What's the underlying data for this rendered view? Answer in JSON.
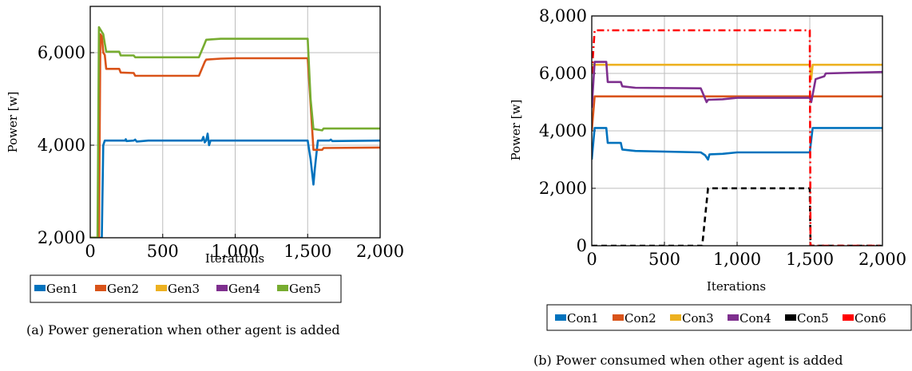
{
  "chart_data": [
    {
      "type": "line",
      "caption": "(a) Power generation when other agent is added",
      "xlabel": "Iterations",
      "ylabel": "Power [w]",
      "xlim": [
        0,
        2000
      ],
      "ylim": [
        2000,
        7000
      ],
      "xticks": [
        0,
        500,
        1000,
        1500,
        2000
      ],
      "xtick_labels": [
        "0",
        "500",
        "1,000",
        "1,500",
        "2,000"
      ],
      "yticks": [
        2000,
        4000,
        6000
      ],
      "ytick_labels": [
        "2,000",
        "4,000",
        "6,000"
      ],
      "grid": true,
      "legend_position": "bottom",
      "series": [
        {
          "name": "Gen1",
          "color": "#0072BD",
          "style": "solid",
          "points": [
            [
              0,
              2000
            ],
            [
              80,
              2000
            ],
            [
              90,
              4000
            ],
            [
              100,
              4100
            ],
            [
              240,
              4100
            ],
            [
              245,
              4130
            ],
            [
              250,
              4090
            ],
            [
              300,
              4100
            ],
            [
              310,
              4120
            ],
            [
              320,
              4080
            ],
            [
              400,
              4100
            ],
            [
              770,
              4100
            ],
            [
              780,
              4180
            ],
            [
              790,
              4060
            ],
            [
              800,
              4100
            ],
            [
              810,
              4250
            ],
            [
              820,
              4000
            ],
            [
              830,
              4100
            ],
            [
              1500,
              4100
            ],
            [
              1520,
              3700
            ],
            [
              1540,
              3150
            ],
            [
              1550,
              3500
            ],
            [
              1570,
              4100
            ],
            [
              1650,
              4100
            ],
            [
              1660,
              4120
            ],
            [
              1670,
              4090
            ],
            [
              2000,
              4100
            ]
          ]
        },
        {
          "name": "Gen2",
          "color": "#D95319",
          "style": "solid",
          "points": [
            [
              0,
              2000
            ],
            [
              60,
              2000
            ],
            [
              70,
              6400
            ],
            [
              80,
              6350
            ],
            [
              90,
              6000
            ],
            [
              100,
              5950
            ],
            [
              110,
              5650
            ],
            [
              200,
              5650
            ],
            [
              210,
              5570
            ],
            [
              300,
              5560
            ],
            [
              310,
              5500
            ],
            [
              750,
              5500
            ],
            [
              790,
              5800
            ],
            [
              800,
              5850
            ],
            [
              900,
              5870
            ],
            [
              1000,
              5880
            ],
            [
              1500,
              5880
            ],
            [
              1520,
              4900
            ],
            [
              1540,
              3900
            ],
            [
              1600,
              3900
            ],
            [
              1610,
              3940
            ],
            [
              2000,
              3950
            ]
          ]
        },
        {
          "name": "Gen3",
          "color": "#EDB120",
          "style": "solid",
          "points": []
        },
        {
          "name": "Gen4",
          "color": "#7E2F8E",
          "style": "solid",
          "points": []
        },
        {
          "name": "Gen5",
          "color": "#77AC30",
          "style": "solid",
          "points": [
            [
              0,
              2000
            ],
            [
              50,
              2000
            ],
            [
              60,
              6550
            ],
            [
              70,
              6500
            ],
            [
              80,
              6450
            ],
            [
              90,
              6400
            ],
            [
              100,
              6200
            ],
            [
              110,
              6020
            ],
            [
              200,
              6020
            ],
            [
              210,
              5940
            ],
            [
              300,
              5940
            ],
            [
              310,
              5900
            ],
            [
              750,
              5900
            ],
            [
              790,
              6200
            ],
            [
              800,
              6280
            ],
            [
              900,
              6300
            ],
            [
              1500,
              6300
            ],
            [
              1520,
              5000
            ],
            [
              1540,
              4350
            ],
            [
              1600,
              4320
            ],
            [
              1610,
              4360
            ],
            [
              2000,
              4360
            ]
          ]
        }
      ]
    },
    {
      "type": "line",
      "caption": "(b) Power consumed when other agent is added",
      "xlabel": "Iterations",
      "ylabel": "Power [w]",
      "xlim": [
        0,
        2000
      ],
      "ylim": [
        0,
        8000
      ],
      "xticks": [
        0,
        500,
        1000,
        1500,
        2000
      ],
      "xtick_labels": [
        "0",
        "500",
        "1,000",
        "1,500",
        "2,000"
      ],
      "yticks": [
        0,
        2000,
        4000,
        6000,
        8000
      ],
      "ytick_labels": [
        "0",
        "2,000",
        "4,000",
        "6,000",
        "8,000"
      ],
      "grid": true,
      "legend_position": "bottom",
      "series": [
        {
          "name": "Con1",
          "color": "#0072BD",
          "style": "solid",
          "points": [
            [
              0,
              3000
            ],
            [
              20,
              4100
            ],
            [
              100,
              4100
            ],
            [
              110,
              3580
            ],
            [
              200,
              3580
            ],
            [
              210,
              3350
            ],
            [
              300,
              3300
            ],
            [
              750,
              3250
            ],
            [
              780,
              3150
            ],
            [
              800,
              3000
            ],
            [
              810,
              3180
            ],
            [
              900,
              3200
            ],
            [
              1000,
              3250
            ],
            [
              1500,
              3250
            ],
            [
              1520,
              4100
            ],
            [
              2000,
              4100
            ]
          ]
        },
        {
          "name": "Con2",
          "color": "#D95319",
          "style": "solid",
          "points": [
            [
              0,
              4000
            ],
            [
              20,
              5200
            ],
            [
              2000,
              5200
            ]
          ]
        },
        {
          "name": "Con3",
          "color": "#EDB120",
          "style": "solid",
          "points": [
            [
              0,
              6300
            ],
            [
              1500,
              6300
            ],
            [
              1510,
              5800
            ],
            [
              1520,
              6300
            ],
            [
              2000,
              6300
            ]
          ]
        },
        {
          "name": "Con4",
          "color": "#7E2F8E",
          "style": "solid",
          "points": [
            [
              0,
              4800
            ],
            [
              20,
              6400
            ],
            [
              100,
              6400
            ],
            [
              110,
              5700
            ],
            [
              200,
              5700
            ],
            [
              210,
              5550
            ],
            [
              300,
              5500
            ],
            [
              750,
              5480
            ],
            [
              790,
              5000
            ],
            [
              800,
              5080
            ],
            [
              900,
              5100
            ],
            [
              1000,
              5150
            ],
            [
              1500,
              5150
            ],
            [
              1510,
              5000
            ],
            [
              1540,
              5800
            ],
            [
              1600,
              5900
            ],
            [
              1610,
              6000
            ],
            [
              2000,
              6050
            ]
          ]
        },
        {
          "name": "Con5",
          "color": "#000000",
          "style": "dashed",
          "points": [
            [
              0,
              0
            ],
            [
              760,
              0
            ],
            [
              800,
              2000
            ],
            [
              1500,
              2000
            ],
            [
              1505,
              0
            ],
            [
              2000,
              0
            ]
          ]
        },
        {
          "name": "Con6",
          "color": "#FF0000",
          "style": "dashdot",
          "points": [
            [
              0,
              6000
            ],
            [
              20,
              7500
            ],
            [
              1500,
              7500
            ],
            [
              1505,
              0
            ],
            [
              2000,
              0
            ]
          ]
        }
      ]
    }
  ]
}
